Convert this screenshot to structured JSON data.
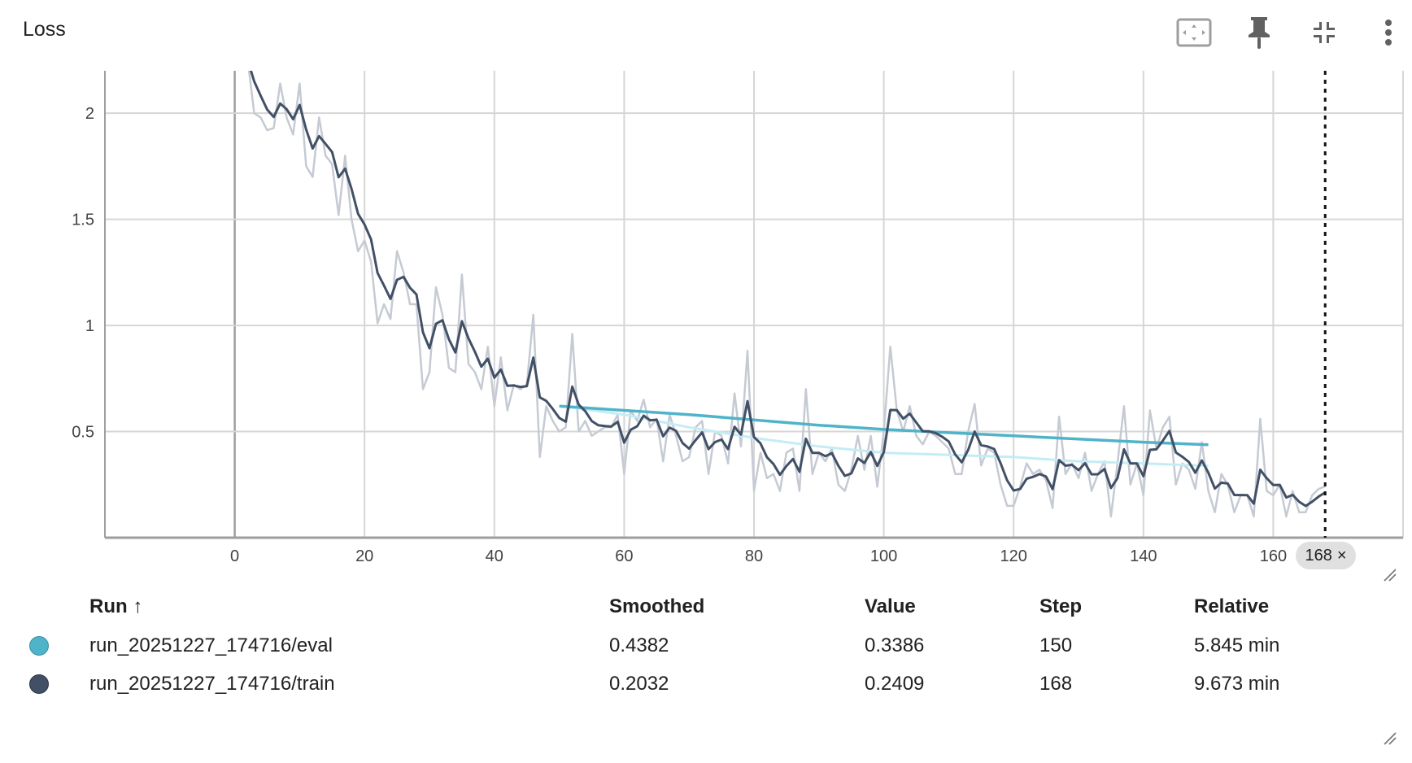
{
  "card": {
    "title": "Loss"
  },
  "toolbar": [
    {
      "icon": "fit-to-data-icon"
    },
    {
      "icon": "pin-icon"
    },
    {
      "icon": "collapse-icon"
    },
    {
      "icon": "more-vert-icon"
    }
  ],
  "step_chip": {
    "label": "168",
    "close": "×"
  },
  "table": {
    "headers": {
      "run": "Run ↑",
      "smoothed": "Smoothed",
      "value": "Value",
      "step": "Step",
      "relative": "Relative"
    },
    "rows": [
      {
        "color": "#4fb3c9",
        "run": "run_20251227_174716/eval",
        "smoothed": "0.4382",
        "value": "0.3386",
        "step": "150",
        "relative": "5.845 min"
      },
      {
        "color": "#425066",
        "run": "run_20251227_174716/train",
        "smoothed": "0.2032",
        "value": "0.2409",
        "step": "168",
        "relative": "9.673 min"
      }
    ]
  },
  "chart_data": {
    "type": "line",
    "title": "Loss",
    "xlabel": "",
    "ylabel": "",
    "xlim": [
      -20,
      180
    ],
    "ylim": [
      0,
      2.2
    ],
    "x_ticks": [
      "0",
      "20",
      "40",
      "60",
      "80",
      "100",
      "120",
      "140",
      "160"
    ],
    "y_ticks": [
      "0.5",
      "1",
      "1.5",
      "2"
    ],
    "grid": true,
    "cursor_step": 168,
    "series": [
      {
        "name": "run_20251227_174716/train",
        "color": "#425066",
        "raw_color": "#c5cad3",
        "x_start": 2,
        "raw": [
          2.25,
          2.0,
          1.98,
          1.92,
          1.93,
          2.14,
          1.98,
          1.9,
          2.14,
          1.75,
          1.7,
          1.98,
          1.8,
          1.76,
          1.52,
          1.8,
          1.5,
          1.35,
          1.4,
          1.3,
          1.01,
          1.1,
          1.03,
          1.35,
          1.25,
          1.1,
          1.1,
          0.7,
          0.78,
          1.18,
          1.05,
          0.8,
          0.78,
          1.24,
          0.82,
          0.78,
          0.7,
          0.9,
          0.62,
          0.85,
          0.6,
          0.72,
          0.7,
          0.72,
          1.05,
          0.38,
          0.62,
          0.55,
          0.5,
          0.52,
          0.96,
          0.5,
          0.55,
          0.48,
          0.5,
          0.52,
          0.52,
          0.58,
          0.3,
          0.6,
          0.55,
          0.65,
          0.52,
          0.56,
          0.36,
          0.58,
          0.48,
          0.36,
          0.38,
          0.52,
          0.55,
          0.3,
          0.5,
          0.48,
          0.35,
          0.68,
          0.43,
          0.88,
          0.22,
          0.4,
          0.28,
          0.3,
          0.22,
          0.4,
          0.42,
          0.22,
          0.7,
          0.3,
          0.4,
          0.36,
          0.42,
          0.25,
          0.22,
          0.32,
          0.48,
          0.32,
          0.48,
          0.24,
          0.5,
          0.9,
          0.6,
          0.5,
          0.62,
          0.48,
          0.44,
          0.5,
          0.48,
          0.45,
          0.42,
          0.3,
          0.3,
          0.5,
          0.63,
          0.34,
          0.42,
          0.4,
          0.25,
          0.15,
          0.15,
          0.24,
          0.35,
          0.3,
          0.32,
          0.27,
          0.14,
          0.57,
          0.3,
          0.35,
          0.28,
          0.4,
          0.22,
          0.3,
          0.36,
          0.1,
          0.35,
          0.62,
          0.25,
          0.35,
          0.2,
          0.6,
          0.42,
          0.52,
          0.57,
          0.25,
          0.35,
          0.32,
          0.23,
          0.45,
          0.22,
          0.12,
          0.3,
          0.25,
          0.12,
          0.2,
          0.2,
          0.1,
          0.56,
          0.22,
          0.2,
          0.25,
          0.1,
          0.22,
          0.12,
          0.12,
          0.2,
          0.23,
          0.2409
        ]
      },
      {
        "name": "run_20251227_174716/eval",
        "color": "#4fb3c9",
        "raw_color": "#c4ecf5",
        "x": [
          50,
          60,
          70,
          80,
          90,
          100,
          110,
          120,
          130,
          140,
          150
        ],
        "raw": [
          0.62,
          0.58,
          0.52,
          0.47,
          0.43,
          0.4,
          0.39,
          0.38,
          0.36,
          0.35,
          0.3386
        ],
        "smoothed": [
          0.62,
          0.6,
          0.58,
          0.555,
          0.53,
          0.51,
          0.495,
          0.48,
          0.465,
          0.45,
          0.4382
        ]
      }
    ]
  }
}
